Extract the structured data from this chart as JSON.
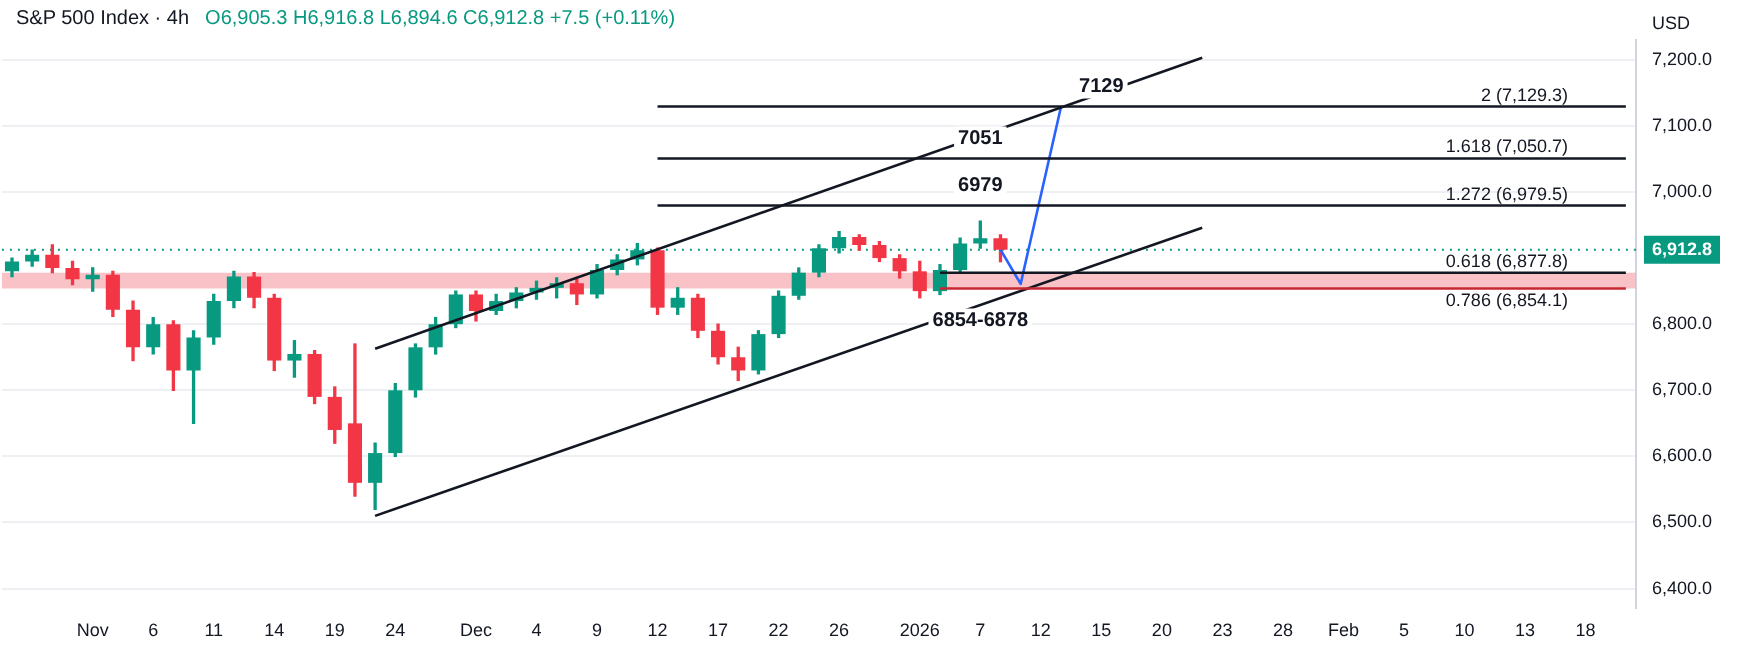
{
  "chart_data": {
    "type": "candlestick",
    "title": "S&P 500 Index · 4h",
    "subtitle": "O6,905.3 H6,916.8 L6,894.6 C6,912.8 +7.5 (+0.11%)",
    "ylabel": "USD",
    "categories": [
      null,
      null,
      null,
      null,
      "Nov",
      null,
      null,
      "6",
      null,
      null,
      "11",
      null,
      null,
      "14",
      null,
      null,
      "19",
      null,
      null,
      "24",
      null,
      null,
      null,
      "Dec",
      null,
      null,
      "4",
      null,
      null,
      "9",
      null,
      null,
      "12",
      null,
      null,
      "17",
      null,
      null,
      "22",
      null,
      null,
      "26",
      null,
      null,
      null,
      "2026",
      null,
      null,
      "7",
      null,
      null,
      "12",
      null,
      null,
      "15",
      null,
      null,
      "20",
      null,
      null,
      "23",
      null,
      null,
      "28",
      null,
      null,
      "Feb",
      null,
      null,
      "5",
      null,
      null,
      "10",
      null,
      null,
      "13",
      null,
      null,
      "18",
      null,
      null
    ],
    "ohlc": [
      [
        6880,
        6900,
        6872,
        6895
      ],
      [
        6895,
        6912,
        6888,
        6905
      ],
      [
        6905,
        6920,
        6878,
        6885
      ],
      [
        6885,
        6895,
        6860,
        6868
      ],
      [
        6868,
        6885,
        6850,
        6875
      ],
      [
        6875,
        6880,
        6812,
        6822
      ],
      [
        6822,
        6835,
        6745,
        6765
      ],
      [
        6765,
        6810,
        6755,
        6800
      ],
      [
        6800,
        6805,
        6700,
        6730
      ],
      [
        6730,
        6790,
        6650,
        6780
      ],
      [
        6780,
        6845,
        6770,
        6835
      ],
      [
        6835,
        6880,
        6825,
        6872
      ],
      [
        6872,
        6878,
        6825,
        6840
      ],
      [
        6840,
        6845,
        6730,
        6745
      ],
      [
        6745,
        6775,
        6720,
        6755
      ],
      [
        6755,
        6760,
        6680,
        6690
      ],
      [
        6690,
        6705,
        6620,
        6640
      ],
      [
        6650,
        6770,
        6540,
        6560
      ],
      [
        6560,
        6620,
        6520,
        6605
      ],
      [
        6605,
        6710,
        6600,
        6700
      ],
      [
        6700,
        6770,
        6690,
        6765
      ],
      [
        6765,
        6810,
        6755,
        6800
      ],
      [
        6800,
        6850,
        6795,
        6845
      ],
      [
        6845,
        6850,
        6805,
        6820
      ],
      [
        6820,
        6845,
        6815,
        6835
      ],
      [
        6835,
        6855,
        6825,
        6848
      ],
      [
        6848,
        6865,
        6838,
        6855
      ],
      [
        6855,
        6870,
        6840,
        6862
      ],
      [
        6862,
        6868,
        6830,
        6845
      ],
      [
        6845,
        6890,
        6840,
        6882
      ],
      [
        6882,
        6905,
        6875,
        6898
      ],
      [
        6898,
        6922,
        6890,
        6912
      ],
      [
        6912,
        6915,
        6815,
        6825
      ],
      [
        6825,
        6855,
        6815,
        6840
      ],
      [
        6840,
        6845,
        6780,
        6790
      ],
      [
        6790,
        6800,
        6740,
        6750
      ],
      [
        6750,
        6765,
        6715,
        6730
      ],
      [
        6730,
        6790,
        6725,
        6785
      ],
      [
        6785,
        6850,
        6780,
        6843
      ],
      [
        6843,
        6885,
        6838,
        6878
      ],
      [
        6878,
        6920,
        6872,
        6915
      ],
      [
        6915,
        6940,
        6908,
        6932
      ],
      [
        6932,
        6935,
        6912,
        6920
      ],
      [
        6920,
        6925,
        6895,
        6900
      ],
      [
        6900,
        6905,
        6870,
        6880
      ],
      [
        6880,
        6895,
        6840,
        6850
      ],
      [
        6850,
        6890,
        6845,
        6882
      ],
      [
        6882,
        6930,
        6878,
        6922
      ],
      [
        6922,
        6956,
        6915,
        6930
      ],
      [
        6930,
        6935,
        6894.6,
        6912.8
      ],
      null,
      null,
      null,
      null,
      null,
      null,
      null,
      null,
      null,
      null,
      null,
      null,
      null,
      null,
      null,
      null,
      null,
      null,
      null,
      null,
      null,
      null,
      null,
      null,
      null,
      null,
      null,
      null,
      null,
      null,
      null
    ],
    "colors": [
      "#089981",
      "#089981",
      "#f23645",
      "#f23645",
      "#089981",
      "#f23645",
      "#f23645",
      "#089981",
      "#f23645",
      "#089981",
      "#089981",
      "#089981",
      "#f23645",
      "#f23645",
      "#089981",
      "#f23645",
      "#f23645",
      "#f23645",
      "#089981",
      "#089981",
      "#089981",
      "#089981",
      "#089981",
      "#f23645",
      "#089981",
      "#089981",
      "#089981",
      "#089981",
      "#f23645",
      "#089981",
      "#089981",
      "#089981",
      "#f23645",
      "#089981",
      "#f23645",
      "#f23645",
      "#f23645",
      "#089981",
      "#089981",
      "#089981",
      "#089981",
      "#089981",
      "#f23645",
      "#f23645",
      "#f23645",
      "#f23645",
      "#089981",
      "#089981",
      "#089981",
      "#f23645",
      null,
      null,
      null,
      null,
      null,
      null,
      null,
      null,
      null,
      null,
      null,
      null,
      null,
      null,
      null,
      null,
      null,
      null,
      null,
      null,
      null,
      null,
      null,
      null,
      null,
      null,
      null,
      null,
      null,
      null,
      null
    ],
    "series": [
      {
        "type": "line",
        "name": "2 (7,129.3)",
        "color": "#131722",
        "values": [
          null,
          null,
          null,
          null,
          null,
          null,
          null,
          null,
          null,
          null,
          null,
          null,
          null,
          null,
          null,
          null,
          null,
          null,
          null,
          null,
          null,
          null,
          null,
          null,
          null,
          null,
          null,
          null,
          null,
          null,
          null,
          null,
          7129.3,
          null,
          null,
          null,
          null,
          null,
          null,
          null,
          null,
          null,
          null,
          null,
          null,
          null,
          null,
          null,
          null,
          null,
          null,
          null,
          null,
          null,
          null,
          null,
          null,
          null,
          null,
          null,
          null,
          null,
          null,
          null,
          null,
          null,
          null,
          null,
          null,
          null,
          null,
          null,
          null,
          null,
          null,
          null,
          null,
          null,
          null,
          null,
          7129.3
        ]
      },
      {
        "type": "line",
        "name": "1.618 (7,050.7)",
        "color": "#131722",
        "values": [
          null,
          null,
          null,
          null,
          null,
          null,
          null,
          null,
          null,
          null,
          null,
          null,
          null,
          null,
          null,
          null,
          null,
          null,
          null,
          null,
          null,
          null,
          null,
          null,
          null,
          null,
          null,
          null,
          null,
          null,
          null,
          null,
          7050.7,
          null,
          null,
          null,
          null,
          null,
          null,
          null,
          null,
          null,
          null,
          null,
          null,
          null,
          null,
          null,
          null,
          null,
          null,
          null,
          null,
          null,
          null,
          null,
          null,
          null,
          null,
          null,
          null,
          null,
          null,
          null,
          null,
          null,
          null,
          null,
          null,
          null,
          null,
          null,
          null,
          null,
          null,
          null,
          null,
          null,
          null,
          null,
          7050.7
        ]
      },
      {
        "type": "line",
        "name": "1.272 (6,979.5)",
        "color": "#131722",
        "values": [
          null,
          null,
          null,
          null,
          null,
          null,
          null,
          null,
          null,
          null,
          null,
          null,
          null,
          null,
          null,
          null,
          null,
          null,
          null,
          null,
          null,
          null,
          null,
          null,
          null,
          null,
          null,
          null,
          null,
          null,
          null,
          null,
          6979.5,
          null,
          null,
          null,
          null,
          null,
          null,
          null,
          null,
          null,
          null,
          null,
          null,
          null,
          null,
          null,
          null,
          null,
          null,
          null,
          null,
          null,
          null,
          null,
          null,
          null,
          null,
          null,
          null,
          null,
          null,
          null,
          null,
          null,
          null,
          null,
          null,
          null,
          null,
          null,
          null,
          null,
          null,
          null,
          null,
          null,
          null,
          null,
          6979.5
        ]
      },
      {
        "type": "line",
        "name": "0.618 (6,877.8)",
        "color": "#131722",
        "values": [
          null,
          null,
          null,
          null,
          null,
          null,
          null,
          null,
          null,
          null,
          null,
          null,
          null,
          null,
          null,
          null,
          null,
          null,
          null,
          null,
          null,
          null,
          null,
          null,
          null,
          null,
          null,
          null,
          null,
          null,
          null,
          null,
          null,
          null,
          null,
          null,
          null,
          null,
          null,
          null,
          null,
          null,
          null,
          null,
          null,
          null,
          6877.8,
          null,
          null,
          null,
          null,
          null,
          null,
          null,
          null,
          null,
          null,
          null,
          null,
          null,
          null,
          null,
          null,
          null,
          null,
          null,
          null,
          null,
          null,
          null,
          null,
          null,
          null,
          null,
          null,
          null,
          null,
          null,
          null,
          null,
          6877.8
        ]
      },
      {
        "type": "line",
        "name": "0.786 (6,854.1)",
        "color": "#c62833",
        "values": [
          null,
          null,
          null,
          null,
          null,
          null,
          null,
          null,
          null,
          null,
          null,
          null,
          null,
          null,
          null,
          null,
          null,
          null,
          null,
          null,
          null,
          null,
          null,
          null,
          null,
          null,
          null,
          null,
          null,
          null,
          null,
          null,
          null,
          null,
          null,
          null,
          null,
          null,
          null,
          null,
          null,
          null,
          null,
          null,
          null,
          null,
          6854.1,
          null,
          null,
          null,
          null,
          null,
          null,
          null,
          null,
          null,
          null,
          null,
          null,
          null,
          null,
          null,
          null,
          null,
          null,
          null,
          null,
          null,
          null,
          null,
          null,
          null,
          null,
          null,
          null,
          null,
          null,
          null,
          null,
          null,
          6854.1
        ]
      },
      {
        "type": "line",
        "color": "#131722",
        "values": [
          null,
          null,
          null,
          null,
          null,
          null,
          null,
          null,
          null,
          null,
          null,
          null,
          null,
          null,
          null,
          null,
          null,
          null,
          6763,
          null,
          null,
          null,
          null,
          null,
          null,
          null,
          null,
          null,
          null,
          null,
          null,
          null,
          null,
          null,
          null,
          null,
          null,
          null,
          null,
          null,
          null,
          null,
          null,
          null,
          null,
          null,
          null,
          null,
          null,
          null,
          null,
          null,
          null,
          null,
          null,
          null,
          null,
          null,
          null,
          7203,
          null,
          null,
          null,
          null,
          null,
          null,
          null,
          null,
          null,
          null,
          null,
          null,
          null,
          null,
          null,
          null,
          null,
          null,
          null,
          null,
          null
        ]
      },
      {
        "type": "line",
        "color": "#131722",
        "values": [
          null,
          null,
          null,
          null,
          null,
          null,
          null,
          null,
          null,
          null,
          null,
          null,
          null,
          null,
          null,
          null,
          null,
          null,
          6510,
          null,
          null,
          null,
          null,
          null,
          null,
          null,
          null,
          null,
          null,
          null,
          null,
          null,
          null,
          null,
          null,
          null,
          null,
          null,
          null,
          null,
          null,
          null,
          null,
          null,
          null,
          null,
          null,
          null,
          null,
          null,
          null,
          null,
          null,
          null,
          null,
          null,
          null,
          null,
          null,
          6946,
          null,
          null,
          null,
          null,
          null,
          null,
          null,
          null,
          null,
          null,
          null,
          null,
          null,
          null,
          null,
          null,
          null,
          null,
          null,
          null,
          null
        ]
      },
      {
        "type": "line",
        "color": "#2962ff",
        "values": [
          null,
          null,
          null,
          null,
          null,
          null,
          null,
          null,
          null,
          null,
          null,
          null,
          null,
          null,
          null,
          null,
          null,
          null,
          null,
          null,
          null,
          null,
          null,
          null,
          null,
          null,
          null,
          null,
          null,
          null,
          null,
          null,
          null,
          null,
          null,
          null,
          null,
          null,
          null,
          null,
          null,
          null,
          null,
          null,
          null,
          null,
          null,
          null,
          null,
          6912.8,
          6861,
          null,
          7129,
          null,
          null,
          null,
          null,
          null,
          null,
          null,
          null,
          null,
          null,
          null,
          null,
          null,
          null,
          null,
          null,
          null,
          null,
          null,
          null,
          null,
          null,
          null,
          null,
          null,
          null,
          null,
          null
        ]
      }
    ],
    "bands": [
      {
        "axis": "y",
        "from": 6854.1,
        "to": 6877.8,
        "color": "#f7a8ae"
      }
    ],
    "ref_lines": [
      {
        "axis": "y",
        "value": 6912.8,
        "label": "6,912.8",
        "color": "#089981",
        "line_style": "dotted"
      }
    ],
    "annotations": [
      {
        "text": "7129",
        "x": "15",
        "y": 7129.3
      },
      {
        "text": "7051",
        "x": "7",
        "y": 7050.7
      },
      {
        "text": "6979",
        "x": "7",
        "y": 6979.5
      },
      {
        "text": "6854-6878",
        "x": "7",
        "y": 6854.1
      }
    ],
    "ylim": [
      6370,
      7230
    ],
    "yticks": [
      {
        "value": 6400,
        "label": "6,400.0"
      },
      {
        "value": 6500,
        "label": "6,500.0"
      },
      {
        "value": 6600,
        "label": "6,600.0"
      },
      {
        "value": 6700,
        "label": "6,700.0"
      },
      {
        "value": 6800,
        "label": "6,800.0"
      },
      {
        "value": 7000,
        "label": "7,000.0"
      },
      {
        "value": 7100,
        "label": "7,100.0"
      },
      {
        "value": 7200,
        "label": "7,200.0"
      }
    ],
    "grid": "y",
    "legend": false,
    "marker": "none"
  }
}
